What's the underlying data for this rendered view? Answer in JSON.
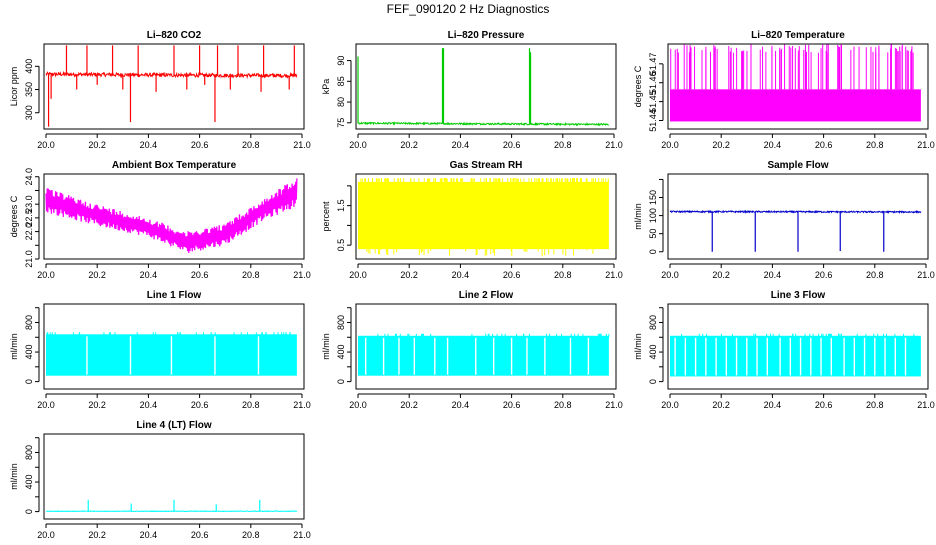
{
  "figure_title": "FEF_090120  2 Hz Diagnostics",
  "chart_data": [
    {
      "type": "line",
      "title": "Li–820 CO2",
      "ylabel": "Licor ppm",
      "color": "#ff0000",
      "xlim": [
        20.0,
        21.0
      ],
      "xticks": [
        20.0,
        20.2,
        20.4,
        20.6,
        20.8,
        21.0
      ],
      "xtick_labels": [
        "20.0",
        "20.2",
        "20.4",
        "20.6",
        "20.8",
        "21.0"
      ],
      "ylim": [
        265,
        448
      ],
      "yticks": [
        300,
        350,
        400
      ],
      "ytick_labels": [
        "300",
        "350",
        "400"
      ],
      "xrange": [
        20.0,
        20.98
      ],
      "series": [
        {
          "style": "noisy",
          "baseline": 382,
          "trend": [
            [
              20.0,
              383
            ],
            [
              20.5,
              381
            ],
            [
              20.98,
              380
            ]
          ],
          "noise": 4,
          "spikes": [
            [
              20.01,
              270
            ],
            [
              20.02,
              330
            ],
            [
              20.08,
              445
            ],
            [
              20.12,
              350
            ],
            [
              20.16,
              445
            ],
            [
              20.2,
              360
            ],
            [
              20.26,
              445
            ],
            [
              20.3,
              350
            ],
            [
              20.33,
              280
            ],
            [
              20.36,
              445
            ],
            [
              20.43,
              345
            ],
            [
              20.5,
              445
            ],
            [
              20.55,
              350
            ],
            [
              20.6,
              445
            ],
            [
              20.62,
              360
            ],
            [
              20.66,
              280
            ],
            [
              20.67,
              445
            ],
            [
              20.72,
              350
            ],
            [
              20.75,
              445
            ],
            [
              20.84,
              345
            ],
            [
              20.85,
              445
            ],
            [
              20.95,
              350
            ],
            [
              20.97,
              445
            ]
          ]
        }
      ]
    },
    {
      "type": "line",
      "title": "Li–820 Pressure",
      "ylabel": "kPa",
      "color": "#00cc00",
      "xlim": [
        20.0,
        21.0
      ],
      "xticks": [
        20.0,
        20.2,
        20.4,
        20.6,
        20.8,
        21.0
      ],
      "xtick_labels": [
        "20.0",
        "20.2",
        "20.4",
        "20.6",
        "20.8",
        "21.0"
      ],
      "ylim": [
        73.5,
        94
      ],
      "yticks": [
        75,
        80,
        85,
        90
      ],
      "ytick_labels": [
        "75",
        "80",
        "85",
        "90"
      ],
      "xrange": [
        20.0,
        20.98
      ],
      "series": [
        {
          "style": "noisy",
          "baseline": 74.7,
          "trend": [
            [
              20.0,
              74.9
            ],
            [
              20.98,
              74.6
            ]
          ],
          "noise": 0.2,
          "spikes": [
            [
              20.0,
              91
            ],
            [
              20.33,
              93
            ],
            [
              20.334,
              93
            ],
            [
              20.67,
              93
            ],
            [
              20.674,
              92
            ]
          ]
        }
      ]
    },
    {
      "type": "line",
      "title": "Li–820 Temperature",
      "ylabel": "degrees C",
      "color": "#ff00ff",
      "xlim": [
        20.0,
        21.0
      ],
      "xticks": [
        20.0,
        20.2,
        20.4,
        20.6,
        20.8,
        21.0
      ],
      "xtick_labels": [
        "20.0",
        "20.2",
        "20.4",
        "20.6",
        "20.8",
        "21.0"
      ],
      "ylim": [
        51.4355,
        51.4805
      ],
      "yticks": [
        51.44,
        51.45,
        51.46,
        51.47
      ],
      "ytick_labels": [
        "51.44",
        "51.45",
        "51.46",
        "51.47"
      ],
      "yticks_labeled": [
        51.44,
        51.47
      ],
      "xrange": [
        20.0,
        20.98
      ],
      "series": [
        {
          "style": "band",
          "lo": 51.4395,
          "hi": 51.4565,
          "top": 51.4805,
          "spike_count": 95
        }
      ]
    },
    {
      "type": "line",
      "title": "Ambient Box Temperature",
      "ylabel": "degrees C",
      "color": "#ff00ff",
      "xlim": [
        20.0,
        21.0
      ],
      "xticks": [
        20.0,
        20.2,
        20.4,
        20.6,
        20.8,
        21.0
      ],
      "xtick_labels": [
        "20.0",
        "20.2",
        "20.4",
        "20.6",
        "20.8",
        "21.0"
      ],
      "ylim": [
        21.0,
        24.1
      ],
      "yticks": [
        21.0,
        22.0,
        23.0,
        24.0
      ],
      "ytick_labels": [
        "21.0",
        "22.0",
        "23.0",
        "24.0"
      ],
      "yticks_minor": [
        21.5,
        22.5,
        23.5
      ],
      "yticks_minor_labels": [
        "",
        "22.5",
        ""
      ],
      "xrange": [
        20.0,
        20.98
      ],
      "series": [
        {
          "style": "envelope",
          "upper": [
            [
              20.0,
              23.6
            ],
            [
              20.2,
              23.0
            ],
            [
              20.4,
              22.5
            ],
            [
              20.55,
              22.0
            ],
            [
              20.7,
              22.3
            ],
            [
              20.85,
              23.2
            ],
            [
              20.98,
              24.0
            ]
          ],
          "lower": [
            [
              20.0,
              22.7
            ],
            [
              20.2,
              22.2
            ],
            [
              20.4,
              21.8
            ],
            [
              20.55,
              21.2
            ],
            [
              20.7,
              21.5
            ],
            [
              20.85,
              22.4
            ],
            [
              20.98,
              22.9
            ]
          ]
        }
      ]
    },
    {
      "type": "line",
      "title": "Gas Stream RH",
      "ylabel": "percent",
      "color": "#ffff00",
      "xlim": [
        20.0,
        21.0
      ],
      "xticks": [
        20.0,
        20.2,
        20.4,
        20.6,
        20.8,
        21.0
      ],
      "xtick_labels": [
        "20.0",
        "20.2",
        "20.4",
        "20.6",
        "20.8",
        "21.0"
      ],
      "ylim": [
        0.15,
        2.3
      ],
      "yticks": [
        0.5,
        1.0,
        1.5,
        2.0
      ],
      "ytick_labels": [
        "0.5",
        "",
        "1.5",
        ""
      ],
      "xrange": [
        20.0,
        20.98
      ],
      "series": [
        {
          "style": "band",
          "lo": 0.4,
          "hi": 2.1,
          "top": 2.2,
          "bottom": 0.2,
          "spike_count": 140
        }
      ]
    },
    {
      "type": "line",
      "title": "Sample Flow",
      "ylabel": "ml/min",
      "color": "#0000cc",
      "xlim": [
        20.0,
        21.0
      ],
      "xticks": [
        20.0,
        20.2,
        20.4,
        20.6,
        20.8,
        21.0
      ],
      "xtick_labels": [
        "20.0",
        "20.2",
        "20.4",
        "20.6",
        "20.8",
        "21.0"
      ],
      "ylim": [
        -20,
        215
      ],
      "yticks": [
        0,
        50,
        100,
        150,
        200
      ],
      "ytick_labels": [
        "0",
        "50",
        "100",
        "150",
        ""
      ],
      "xrange": [
        20.0,
        20.98
      ],
      "series": [
        {
          "style": "noisy",
          "baseline": 110,
          "trend": [
            [
              20.0,
              111
            ],
            [
              20.98,
              110
            ]
          ],
          "noise": 2,
          "spikes": [
            [
              20.165,
              0
            ],
            [
              20.333,
              0
            ],
            [
              20.5,
              0
            ],
            [
              20.665,
              2
            ],
            [
              20.835,
              0
            ]
          ]
        }
      ]
    },
    {
      "type": "line",
      "title": "Line 1 Flow",
      "ylabel": "ml/min",
      "color": "#00ffff",
      "xlim": [
        20.0,
        21.0
      ],
      "xticks": [
        20.0,
        20.2,
        20.4,
        20.6,
        20.8,
        21.0
      ],
      "xtick_labels": [
        "20.0",
        "20.2",
        "20.4",
        "20.6",
        "20.8",
        "21.0"
      ],
      "ylim": [
        -100,
        1050
      ],
      "yticks": [
        0,
        200,
        400,
        600,
        800,
        1000
      ],
      "ytick_labels": [
        "0",
        "",
        "400",
        "",
        "800",
        ""
      ],
      "xrange": [
        20.0,
        20.98
      ],
      "series": [
        {
          "style": "block",
          "lo": 80,
          "hi": 640,
          "gaps": [
            20.16,
            20.33,
            20.49,
            20.66,
            20.83
          ]
        }
      ]
    },
    {
      "type": "line",
      "title": "Line 2 Flow",
      "ylabel": "ml/min",
      "color": "#00ffff",
      "xlim": [
        20.0,
        21.0
      ],
      "xticks": [
        20.0,
        20.2,
        20.4,
        20.6,
        20.8,
        21.0
      ],
      "xtick_labels": [
        "20.0",
        "20.2",
        "20.4",
        "20.6",
        "20.8",
        "21.0"
      ],
      "ylim": [
        -100,
        1050
      ],
      "yticks": [
        0,
        200,
        400,
        600,
        800,
        1000
      ],
      "ytick_labels": [
        "0",
        "",
        "400",
        "",
        "800",
        ""
      ],
      "xrange": [
        20.0,
        20.98
      ],
      "series": [
        {
          "style": "block",
          "lo": 80,
          "hi": 620,
          "gaps": [
            20.03,
            20.1,
            20.16,
            20.22,
            20.3,
            20.35,
            20.46,
            20.53,
            20.6,
            20.66,
            20.73,
            20.83,
            20.9
          ]
        }
      ]
    },
    {
      "type": "line",
      "title": "Line 3 Flow",
      "ylabel": "ml/min",
      "color": "#00ffff",
      "xlim": [
        20.0,
        21.0
      ],
      "xticks": [
        20.0,
        20.2,
        20.4,
        20.6,
        20.8,
        21.0
      ],
      "xtick_labels": [
        "20.0",
        "20.2",
        "20.4",
        "20.6",
        "20.8",
        "21.0"
      ],
      "ylim": [
        -100,
        1050
      ],
      "yticks": [
        0,
        200,
        400,
        600,
        800,
        1000
      ],
      "ytick_labels": [
        "0",
        "",
        "400",
        "",
        "800",
        ""
      ],
      "xrange": [
        20.0,
        20.98
      ],
      "series": [
        {
          "style": "block",
          "lo": 70,
          "hi": 620,
          "gaps": [
            20.02,
            20.06,
            20.1,
            20.14,
            20.18,
            20.22,
            20.26,
            20.3,
            20.34,
            20.38,
            20.43,
            20.47,
            20.51,
            20.55,
            20.59,
            20.63,
            20.68,
            20.72,
            20.76,
            20.8,
            20.84,
            20.88,
            20.92
          ]
        }
      ]
    },
    {
      "type": "line",
      "title": "Line 4 (LT) Flow",
      "ylabel": "ml/min",
      "color": "#00ffff",
      "xlim": [
        20.0,
        21.0
      ],
      "xticks": [
        20.0,
        20.2,
        20.4,
        20.6,
        20.8,
        21.0
      ],
      "xtick_labels": [
        "20.0",
        "20.2",
        "20.4",
        "20.6",
        "20.8",
        "21.0"
      ],
      "ylim": [
        -100,
        1050
      ],
      "yticks": [
        0,
        200,
        400,
        600,
        800,
        1000
      ],
      "ytick_labels": [
        "0",
        "",
        "400",
        "",
        "800",
        ""
      ],
      "xrange": [
        20.0,
        20.98
      ],
      "series": [
        {
          "style": "noisy",
          "baseline": 5,
          "trend": [
            [
              20.0,
              5
            ],
            [
              20.98,
              5
            ]
          ],
          "noise": 4,
          "spikes": [
            [
              20.165,
              160
            ],
            [
              20.333,
              110
            ],
            [
              20.5,
              160
            ],
            [
              20.665,
              100
            ],
            [
              20.835,
              160
            ]
          ]
        }
      ]
    }
  ]
}
